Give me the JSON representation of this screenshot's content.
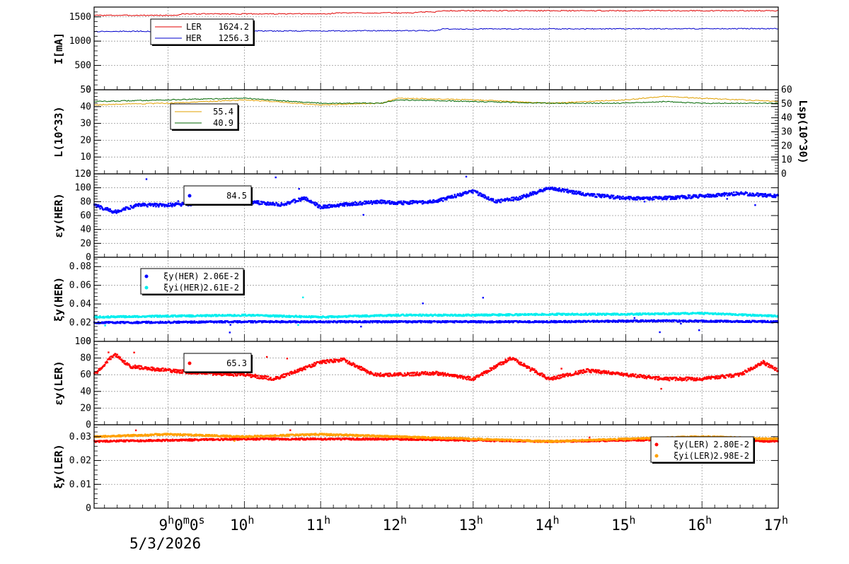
{
  "x_axis": {
    "labels": [
      {
        "t": 9.0,
        "main": "9",
        "sup": "h",
        "rest": "0",
        "sup2": "m",
        "rest2": "0",
        "sup3": "s"
      },
      {
        "t": 10.0,
        "main": "10",
        "sup": "h"
      },
      {
        "t": 11.0,
        "main": "11",
        "sup": "h"
      },
      {
        "t": 12.0,
        "main": "12",
        "sup": "h"
      },
      {
        "t": 13.0,
        "main": "13",
        "sup": "h"
      },
      {
        "t": 14.0,
        "main": "14",
        "sup": "h"
      },
      {
        "t": 15.0,
        "main": "15",
        "sup": "h"
      },
      {
        "t": 16.0,
        "main": "16",
        "sup": "h"
      },
      {
        "t": 17.0,
        "main": "17",
        "sup": "h"
      }
    ],
    "date": "5/3/2026",
    "range": [
      8.03,
      17.0
    ]
  },
  "chart_data": [
    {
      "type": "line",
      "ylabel": "I[mA]",
      "ylim": [
        0,
        1700
      ],
      "yticks": [
        "0",
        "500",
        "1000",
        "1500"
      ],
      "grid": true,
      "legend": {
        "position": "top-left",
        "entries": [
          {
            "name": "LER",
            "value": "1624.2",
            "color": "#e00000"
          },
          {
            "name": "HER",
            "value": "1256.3",
            "color": "#0000cc"
          }
        ]
      },
      "series": [
        {
          "name": "LER",
          "color": "#e00000",
          "x": [
            8.03,
            9.1,
            9.2,
            11.1,
            11.2,
            12.2,
            12.3,
            12.5,
            12.6,
            17.0
          ],
          "y": [
            1530,
            1530,
            1560,
            1560,
            1580,
            1580,
            1600,
            1600,
            1625,
            1625
          ]
        },
        {
          "name": "HER",
          "color": "#0000cc",
          "x": [
            8.03,
            12.5,
            12.6,
            17.0
          ],
          "y": [
            1200,
            1215,
            1250,
            1256
          ]
        }
      ]
    },
    {
      "type": "line",
      "ylabel": "L(10^33)",
      "ylabel_right": "Lsp(10^30)",
      "ylim": [
        0,
        50
      ],
      "ylim_right": [
        0,
        60
      ],
      "yticks": [
        "0",
        "10",
        "20",
        "30",
        "40",
        "50"
      ],
      "yticks_right": [
        "0",
        "10",
        "20",
        "30",
        "40",
        "50",
        "60"
      ],
      "grid": true,
      "legend": {
        "position": "top-left",
        "entries": [
          {
            "name": "",
            "value": "55.4",
            "color": "#e0a000"
          },
          {
            "name": "",
            "value": "40.9",
            "color": "#006600"
          }
        ]
      },
      "series": [
        {
          "name": "",
          "color": "#e0a000",
          "x": [
            8.03,
            9.0,
            10.0,
            11.0,
            11.8,
            12.0,
            13.0,
            14.0,
            15.0,
            15.5,
            16.0,
            17.0
          ],
          "y": [
            41,
            42,
            44,
            41,
            42,
            45,
            44,
            42,
            44,
            46,
            45,
            43
          ]
        },
        {
          "name": "",
          "color": "#006600",
          "x": [
            8.03,
            9.0,
            10.0,
            11.0,
            11.8,
            12.0,
            13.0,
            14.0,
            15.0,
            15.5,
            16.0,
            17.0
          ],
          "y": [
            43,
            44,
            45,
            42,
            42,
            44,
            43,
            42,
            42,
            43,
            42,
            42
          ]
        }
      ]
    },
    {
      "type": "scatter",
      "ylabel": "εy(HER)",
      "ylim": [
        0,
        120
      ],
      "yticks": [
        "0",
        "20",
        "40",
        "60",
        "80",
        "100",
        "120"
      ],
      "grid": true,
      "legend": {
        "position": "top-left",
        "entries": [
          {
            "name": "",
            "value": "84.5",
            "color": "#0000ff"
          }
        ]
      },
      "series": [
        {
          "name": "",
          "color": "#0000ff",
          "x": [
            8.03,
            8.3,
            8.6,
            9.0,
            9.5,
            10.0,
            10.5,
            10.8,
            11.0,
            11.3,
            11.8,
            12.0,
            12.5,
            13.0,
            13.3,
            13.6,
            14.0,
            14.5,
            15.0,
            15.5,
            16.0,
            16.5,
            17.0
          ],
          "y": [
            75,
            65,
            75,
            75,
            78,
            80,
            76,
            85,
            72,
            76,
            80,
            78,
            80,
            95,
            80,
            85,
            100,
            90,
            85,
            85,
            88,
            92,
            88
          ]
        }
      ]
    },
    {
      "type": "scatter",
      "ylabel": "ξy(HER)",
      "ylim": [
        0,
        0.09
      ],
      "yticks": [
        "0",
        "0.02",
        "0.04",
        "0.06",
        "0.08"
      ],
      "grid": true,
      "legend": {
        "position": "top-left",
        "entries": [
          {
            "name": "ξy(HER)",
            "value": "2.06E-2",
            "color": "#0000ff"
          },
          {
            "name": "ξyi(HER)",
            "value": "2.61E-2",
            "color": "#00eeee"
          }
        ]
      },
      "series": [
        {
          "name": "ξy(HER)",
          "color": "#0000ff",
          "x": [
            8.03,
            10.0,
            12.0,
            14.0,
            15.5,
            17.0
          ],
          "y": [
            0.02,
            0.021,
            0.021,
            0.021,
            0.022,
            0.021
          ]
        },
        {
          "name": "ξyi(HER)",
          "color": "#00eeee",
          "x": [
            8.03,
            9.0,
            10.0,
            11.0,
            12.0,
            13.0,
            14.0,
            15.0,
            16.0,
            17.0
          ],
          "y": [
            0.026,
            0.027,
            0.028,
            0.026,
            0.028,
            0.028,
            0.029,
            0.029,
            0.03,
            0.027
          ]
        }
      ]
    },
    {
      "type": "scatter",
      "ylabel": "εy(LER)",
      "ylim": [
        0,
        100
      ],
      "yticks": [
        "0",
        "20",
        "40",
        "60",
        "80",
        "100"
      ],
      "grid": true,
      "legend": {
        "position": "top-left",
        "entries": [
          {
            "name": "",
            "value": "65.3",
            "color": "#ff0000"
          }
        ]
      },
      "series": [
        {
          "name": "",
          "color": "#ff0000",
          "x": [
            8.03,
            8.3,
            8.5,
            9.0,
            9.5,
            10.0,
            10.4,
            10.7,
            11.0,
            11.3,
            11.7,
            12.0,
            12.5,
            13.0,
            13.5,
            14.0,
            14.5,
            15.0,
            15.5,
            16.0,
            16.5,
            16.8,
            17.0
          ],
          "y": [
            60,
            85,
            70,
            65,
            62,
            60,
            55,
            65,
            75,
            78,
            60,
            60,
            62,
            55,
            80,
            55,
            65,
            60,
            55,
            55,
            60,
            75,
            65
          ]
        }
      ]
    },
    {
      "type": "scatter",
      "ylabel": "ξy(LER)",
      "ylim": [
        0,
        0.035
      ],
      "yticks": [
        "0",
        "0.01",
        "0.02",
        "0.03"
      ],
      "grid": true,
      "legend": {
        "position": "top-right",
        "entries": [
          {
            "name": "ξy(LER)",
            "value": "2.80E-2",
            "color": "#ff0000"
          },
          {
            "name": "ξyi(LER)",
            "value": "2.98E-2",
            "color": "#ffa000"
          }
        ]
      },
      "series": [
        {
          "name": "ξy(LER)",
          "color": "#ff0000",
          "x": [
            8.03,
            10.0,
            12.0,
            14.0,
            16.0,
            17.0
          ],
          "y": [
            0.028,
            0.029,
            0.029,
            0.028,
            0.029,
            0.028
          ]
        },
        {
          "name": "ξyi(LER)",
          "color": "#ffa000",
          "x": [
            8.03,
            9.0,
            10.0,
            11.0,
            12.0,
            13.0,
            14.0,
            15.0,
            16.0,
            17.0
          ],
          "y": [
            0.03,
            0.031,
            0.03,
            0.031,
            0.03,
            0.029,
            0.028,
            0.029,
            0.03,
            0.029
          ]
        }
      ]
    }
  ]
}
